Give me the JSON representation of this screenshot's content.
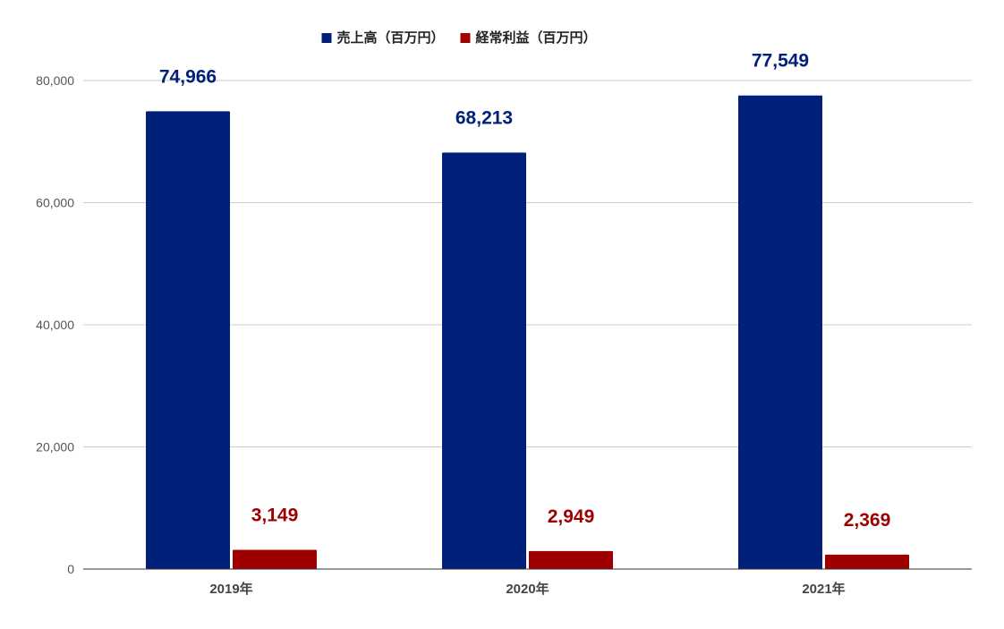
{
  "chart_data": {
    "type": "bar",
    "categories": [
      "2019年",
      "2020年",
      "2021年"
    ],
    "series": [
      {
        "name": "売上高（百万円）",
        "values": [
          74966,
          68213,
          77549
        ],
        "color": "#00207a",
        "labels": [
          "74,966",
          "68,213",
          "77,549"
        ]
      },
      {
        "name": "経常利益（百万円）",
        "values": [
          3149,
          2949,
          2369
        ],
        "color": "#9e0000",
        "labels": [
          "3,149",
          "2,949",
          "2,369"
        ]
      }
    ],
    "ylim": [
      0,
      80000
    ],
    "yticks": [
      0,
      20000,
      40000,
      60000,
      80000
    ],
    "ytick_labels": [
      "0",
      "20,000",
      "40,000",
      "60,000",
      "80,000"
    ],
    "grid": true,
    "legend_position": "top-center",
    "title": "",
    "xlabel": "",
    "ylabel": ""
  }
}
